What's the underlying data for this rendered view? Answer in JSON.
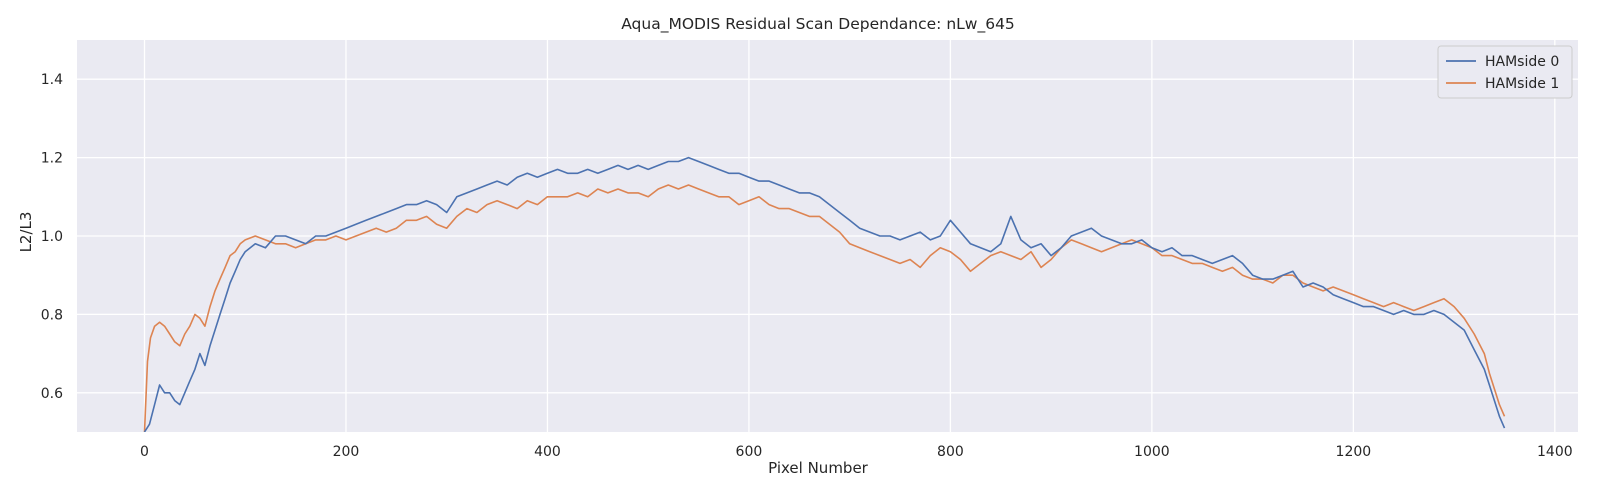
{
  "chart_data": {
    "type": "line",
    "title": "Aqua_MODIS Residual Scan Dependance: nLw_645",
    "xlabel": "Pixel Number",
    "ylabel": "L2/L3",
    "xlim": [
      -67,
      1423
    ],
    "ylim": [
      0.5,
      1.5
    ],
    "xticks": [
      0,
      200,
      400,
      600,
      800,
      1000,
      1200,
      1400
    ],
    "yticks": [
      0.6,
      0.8,
      1.0,
      1.2,
      1.4
    ],
    "xtick_labels": [
      "0",
      "200",
      "400",
      "600",
      "800",
      "1000",
      "1200",
      "1400"
    ],
    "ytick_labels": [
      "0.6",
      "0.8",
      "1.0",
      "1.2",
      "1.4"
    ],
    "grid": true,
    "legend_position": "top-right",
    "series": [
      {
        "name": "HAMside 0",
        "color": "#4c72b0",
        "x": [
          0,
          5,
          10,
          15,
          20,
          25,
          30,
          35,
          40,
          45,
          50,
          55,
          60,
          65,
          70,
          75,
          80,
          85,
          90,
          95,
          100,
          110,
          120,
          130,
          140,
          150,
          160,
          170,
          180,
          190,
          200,
          210,
          220,
          230,
          240,
          250,
          260,
          270,
          280,
          290,
          300,
          310,
          320,
          330,
          340,
          350,
          360,
          370,
          380,
          390,
          400,
          410,
          420,
          430,
          440,
          450,
          460,
          470,
          480,
          490,
          500,
          510,
          520,
          530,
          540,
          550,
          560,
          570,
          580,
          590,
          600,
          610,
          620,
          630,
          640,
          650,
          660,
          670,
          680,
          690,
          700,
          710,
          720,
          730,
          740,
          750,
          760,
          770,
          780,
          790,
          800,
          810,
          820,
          830,
          840,
          850,
          860,
          870,
          880,
          890,
          900,
          910,
          920,
          930,
          940,
          950,
          960,
          970,
          980,
          990,
          1000,
          1010,
          1020,
          1030,
          1040,
          1050,
          1060,
          1070,
          1080,
          1090,
          1100,
          1110,
          1120,
          1130,
          1140,
          1150,
          1160,
          1170,
          1180,
          1190,
          1200,
          1210,
          1220,
          1230,
          1240,
          1250,
          1260,
          1270,
          1280,
          1290,
          1300,
          1310,
          1320,
          1330,
          1335,
          1340,
          1345,
          1350
        ],
        "y": [
          0.5,
          0.52,
          0.57,
          0.62,
          0.6,
          0.6,
          0.58,
          0.57,
          0.6,
          0.63,
          0.66,
          0.7,
          0.67,
          0.72,
          0.76,
          0.8,
          0.84,
          0.88,
          0.91,
          0.94,
          0.96,
          0.98,
          0.97,
          1.0,
          1.0,
          0.99,
          0.98,
          1.0,
          1.0,
          1.01,
          1.02,
          1.03,
          1.04,
          1.05,
          1.06,
          1.07,
          1.08,
          1.08,
          1.09,
          1.08,
          1.06,
          1.1,
          1.11,
          1.12,
          1.13,
          1.14,
          1.13,
          1.15,
          1.16,
          1.15,
          1.16,
          1.17,
          1.16,
          1.16,
          1.17,
          1.16,
          1.17,
          1.18,
          1.17,
          1.18,
          1.17,
          1.18,
          1.19,
          1.19,
          1.2,
          1.19,
          1.18,
          1.17,
          1.16,
          1.16,
          1.15,
          1.14,
          1.14,
          1.13,
          1.12,
          1.11,
          1.11,
          1.1,
          1.08,
          1.06,
          1.04,
          1.02,
          1.01,
          1.0,
          1.0,
          0.99,
          1.0,
          1.01,
          0.99,
          1.0,
          1.04,
          1.01,
          0.98,
          0.97,
          0.96,
          0.98,
          1.05,
          0.99,
          0.97,
          0.98,
          0.95,
          0.97,
          1.0,
          1.01,
          1.02,
          1.0,
          0.99,
          0.98,
          0.98,
          0.99,
          0.97,
          0.96,
          0.97,
          0.95,
          0.95,
          0.94,
          0.93,
          0.94,
          0.95,
          0.93,
          0.9,
          0.89,
          0.89,
          0.9,
          0.91,
          0.87,
          0.88,
          0.87,
          0.85,
          0.84,
          0.83,
          0.82,
          0.82,
          0.81,
          0.8,
          0.81,
          0.8,
          0.8,
          0.81,
          0.8,
          0.78,
          0.76,
          0.71,
          0.66,
          0.62,
          0.58,
          0.54,
          0.51
        ]
      },
      {
        "name": "HAMside 1",
        "color": "#dd8452",
        "x": [
          0,
          3,
          6,
          10,
          15,
          20,
          25,
          30,
          35,
          40,
          45,
          50,
          55,
          60,
          65,
          70,
          75,
          80,
          85,
          90,
          95,
          100,
          110,
          120,
          130,
          140,
          150,
          160,
          170,
          180,
          190,
          200,
          210,
          220,
          230,
          240,
          250,
          260,
          270,
          280,
          290,
          300,
          310,
          320,
          330,
          340,
          350,
          360,
          370,
          380,
          390,
          400,
          410,
          420,
          430,
          440,
          450,
          460,
          470,
          480,
          490,
          500,
          510,
          520,
          530,
          540,
          550,
          560,
          570,
          580,
          590,
          600,
          610,
          620,
          630,
          640,
          650,
          660,
          670,
          680,
          690,
          700,
          710,
          720,
          730,
          740,
          750,
          760,
          770,
          780,
          790,
          800,
          810,
          820,
          830,
          840,
          850,
          860,
          870,
          880,
          890,
          900,
          910,
          920,
          930,
          940,
          950,
          960,
          970,
          980,
          990,
          1000,
          1010,
          1020,
          1030,
          1040,
          1050,
          1060,
          1070,
          1080,
          1090,
          1100,
          1110,
          1120,
          1130,
          1140,
          1150,
          1160,
          1170,
          1180,
          1190,
          1200,
          1210,
          1220,
          1230,
          1240,
          1250,
          1260,
          1270,
          1280,
          1290,
          1300,
          1310,
          1320,
          1330,
          1335,
          1340,
          1345,
          1350
        ],
        "y": [
          0.5,
          0.68,
          0.74,
          0.77,
          0.78,
          0.77,
          0.75,
          0.73,
          0.72,
          0.75,
          0.77,
          0.8,
          0.79,
          0.77,
          0.82,
          0.86,
          0.89,
          0.92,
          0.95,
          0.96,
          0.98,
          0.99,
          1.0,
          0.99,
          0.98,
          0.98,
          0.97,
          0.98,
          0.99,
          0.99,
          1.0,
          0.99,
          1.0,
          1.01,
          1.02,
          1.01,
          1.02,
          1.04,
          1.04,
          1.05,
          1.03,
          1.02,
          1.05,
          1.07,
          1.06,
          1.08,
          1.09,
          1.08,
          1.07,
          1.09,
          1.08,
          1.1,
          1.1,
          1.1,
          1.11,
          1.1,
          1.12,
          1.11,
          1.12,
          1.11,
          1.11,
          1.1,
          1.12,
          1.13,
          1.12,
          1.13,
          1.12,
          1.11,
          1.1,
          1.1,
          1.08,
          1.09,
          1.1,
          1.08,
          1.07,
          1.07,
          1.06,
          1.05,
          1.05,
          1.03,
          1.01,
          0.98,
          0.97,
          0.96,
          0.95,
          0.94,
          0.93,
          0.94,
          0.92,
          0.95,
          0.97,
          0.96,
          0.94,
          0.91,
          0.93,
          0.95,
          0.96,
          0.95,
          0.94,
          0.96,
          0.92,
          0.94,
          0.97,
          0.99,
          0.98,
          0.97,
          0.96,
          0.97,
          0.98,
          0.99,
          0.98,
          0.97,
          0.95,
          0.95,
          0.94,
          0.93,
          0.93,
          0.92,
          0.91,
          0.92,
          0.9,
          0.89,
          0.89,
          0.88,
          0.9,
          0.9,
          0.88,
          0.87,
          0.86,
          0.87,
          0.86,
          0.85,
          0.84,
          0.83,
          0.82,
          0.83,
          0.82,
          0.81,
          0.82,
          0.83,
          0.84,
          0.82,
          0.79,
          0.75,
          0.7,
          0.65,
          0.61,
          0.57,
          0.54
        ]
      }
    ]
  }
}
